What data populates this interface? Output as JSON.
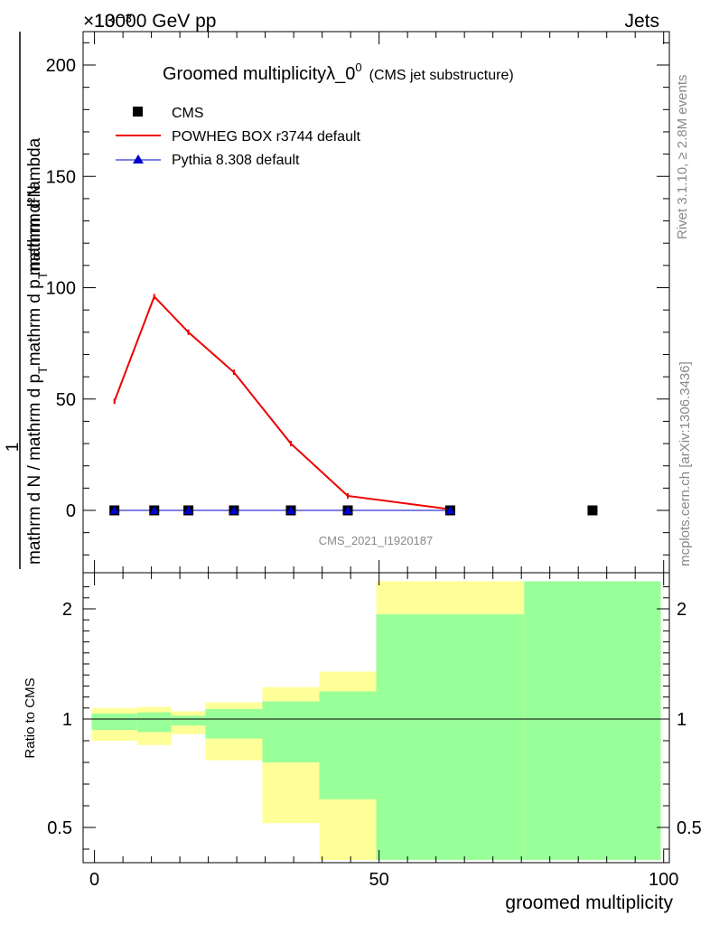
{
  "header": {
    "beam": "13000 GeV pp",
    "process": "Jets",
    "exponent_label": "×10⁻³"
  },
  "side_labels": {
    "rivet": "Rivet 3.1.10, ≥ 2.8M events",
    "mcplots": "mcplots.cern.ch [arXiv:1306.3436]"
  },
  "chart_data": [
    {
      "type": "line",
      "panel": "main",
      "title_main": "Groomed multiplicityλ_0",
      "title_sup": "0",
      "title_sub": "(CMS jet substructure)",
      "watermark": "CMS_2021_I1920187",
      "ylabel_numerator": "mathrm d²N",
      "ylabel_part1": "1",
      "ylabel_part2": "mathrm d N / mathrm d p",
      "ylabel_part3": "mathrm d p",
      "ylabel_part4": "mathrm d lambda",
      "ylabel_sub": "T",
      "xlim": [
        -2,
        101
      ],
      "ylim": [
        -25,
        215
      ],
      "yticks": [
        0,
        50,
        100,
        150,
        200
      ],
      "ytick_labels": [
        "0",
        "50",
        "100",
        "150",
        "200"
      ],
      "legend": [
        {
          "name": "CMS",
          "marker": "square",
          "color": "#000000"
        },
        {
          "name": "POWHEG BOX r3744 default",
          "marker": "line",
          "color": "#ee0000"
        },
        {
          "name": "Pythia 8.308 default",
          "marker": "triangle",
          "color": "#0000cc"
        }
      ],
      "series": [
        {
          "name": "CMS",
          "x": [
            3.5,
            10.5,
            16.5,
            24.5,
            34.5,
            44.5,
            62.5,
            87.5
          ],
          "y": [
            0,
            0,
            0,
            0,
            0,
            0,
            0,
            0
          ]
        },
        {
          "name": "POWHEG BOX r3744 default",
          "x": [
            3.5,
            10.5,
            16.5,
            24.5,
            34.5,
            44.5,
            62.5
          ],
          "y": [
            49,
            96,
            80,
            62,
            30,
            6.5,
            0.5
          ]
        },
        {
          "name": "Pythia 8.308 default",
          "x": [
            3.5,
            10.5,
            16.5,
            24.5,
            34.5,
            44.5,
            62.5
          ],
          "y": [
            0,
            0,
            0,
            0,
            0,
            0,
            0
          ]
        }
      ]
    },
    {
      "type": "area",
      "panel": "ratio",
      "ylabel": "Ratio to CMS",
      "xlabel": "groomed multiplicity",
      "xlim": [
        -2,
        101
      ],
      "ylim": [
        0.35,
        2.25
      ],
      "xticks": [
        0,
        50,
        100
      ],
      "xtick_labels": [
        "0",
        "50",
        "100"
      ],
      "yticks": [
        0.5,
        1,
        2
      ],
      "ytick_labels": [
        "0.5",
        "1",
        "2"
      ],
      "bins": [
        {
          "x0": -0.5,
          "x1": 7.5,
          "yellow": [
            0.9,
            1.1
          ],
          "green": [
            0.95,
            1.05
          ]
        },
        {
          "x0": 7.5,
          "x1": 13.5,
          "yellow": [
            0.88,
            1.11
          ],
          "green": [
            0.94,
            1.06
          ]
        },
        {
          "x0": 13.5,
          "x1": 19.5,
          "yellow": [
            0.93,
            1.07
          ],
          "green": [
            0.97,
            1.03
          ]
        },
        {
          "x0": 19.5,
          "x1": 29.5,
          "yellow": [
            0.81,
            1.15
          ],
          "green": [
            0.91,
            1.09
          ]
        },
        {
          "x0": 29.5,
          "x1": 39.5,
          "yellow": [
            0.52,
            1.29
          ],
          "green": [
            0.8,
            1.16
          ]
        },
        {
          "x0": 39.5,
          "x1": 49.5,
          "yellow": [
            0.35,
            1.43
          ],
          "green": [
            0.63,
            1.25
          ]
        },
        {
          "x0": 49.5,
          "x1": 75.5,
          "yellow": [
            0.35,
            2.25
          ],
          "green": [
            0.35,
            1.95
          ]
        },
        {
          "x0": 75.5,
          "x1": 99.5,
          "yellow": [
            0.35,
            2.25
          ],
          "green": [
            0.35,
            2.25
          ]
        }
      ]
    }
  ]
}
